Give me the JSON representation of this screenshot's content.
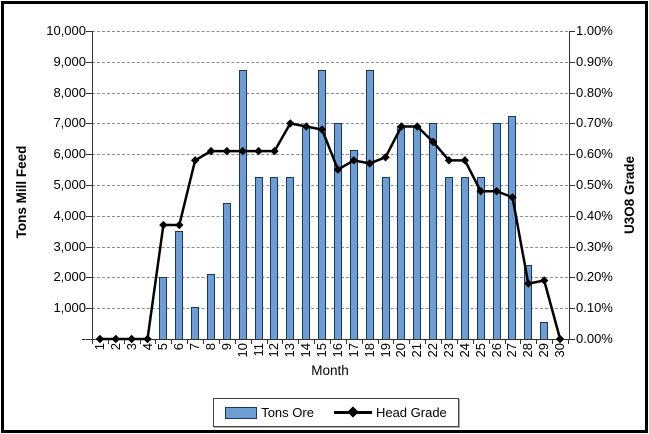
{
  "chart_data": {
    "type": "bar",
    "subtype": "combo-bar-line-dual-axis",
    "categories": [
      1,
      2,
      3,
      4,
      5,
      6,
      7,
      8,
      9,
      10,
      11,
      12,
      13,
      14,
      15,
      16,
      17,
      18,
      19,
      20,
      21,
      22,
      23,
      24,
      25,
      26,
      27,
      28,
      29,
      30
    ],
    "series": [
      {
        "name": "Tons Ore",
        "type": "bar",
        "axis": "left",
        "values": [
          0,
          0,
          0,
          0,
          2000,
          3500,
          1050,
          2100,
          4400,
          8750,
          5250,
          5250,
          5250,
          6900,
          8750,
          7000,
          6150,
          8750,
          5250,
          6900,
          6900,
          7000,
          5250,
          5250,
          5250,
          7000,
          7250,
          2400,
          550,
          0
        ]
      },
      {
        "name": "Head Grade",
        "type": "line",
        "axis": "right",
        "unit": "percent",
        "values": [
          0.0,
          0.0,
          0.0,
          0.0,
          0.37,
          0.37,
          0.58,
          0.61,
          0.61,
          0.61,
          0.61,
          0.61,
          0.7,
          0.69,
          0.68,
          0.55,
          0.58,
          0.57,
          0.59,
          0.69,
          0.69,
          0.64,
          0.58,
          0.58,
          0.48,
          0.48,
          0.46,
          0.18,
          0.19,
          0.0
        ]
      }
    ],
    "x_axis": {
      "title": "Month",
      "tick_labels": [
        "1",
        "2",
        "3",
        "4",
        "5",
        "6",
        "7",
        "8",
        "9",
        "10",
        "11",
        "12",
        "13",
        "14",
        "15",
        "16",
        "17",
        "18",
        "19",
        "20",
        "21",
        "22",
        "23",
        "24",
        "25",
        "26",
        "27",
        "28",
        "29",
        "30"
      ]
    },
    "left_axis": {
      "title": "Tons Mill Feed",
      "min": 0,
      "max": 10000,
      "step": 1000,
      "tick_labels": [
        "10,000",
        "9,000",
        "8,000",
        "7,000",
        "6,000",
        "5,000",
        "4,000",
        "3,000",
        "2,000",
        "1,000",
        "-"
      ]
    },
    "right_axis": {
      "title": "U3O8 Grade",
      "min": "0.00%",
      "max": "1.00%",
      "step": "0.10%",
      "tick_labels": [
        "1.00%",
        "0.90%",
        "0.80%",
        "0.70%",
        "0.60%",
        "0.50%",
        "0.40%",
        "0.30%",
        "0.20%",
        "0.10%",
        "0.00%"
      ]
    },
    "legend": {
      "position": "bottom-center",
      "items": [
        {
          "label": "Tons Ore",
          "marker": "bar-swatch"
        },
        {
          "label": "Head Grade",
          "marker": "line-with-diamond"
        }
      ]
    },
    "grid": "horizontal-dashed",
    "colors": {
      "bar_fill": "#6D9DD2",
      "bar_border": "#17375D",
      "line": "#000000",
      "marker": "#000000",
      "gridline": "#8C8C8C",
      "axis": "#333333",
      "frame": "#000000"
    }
  }
}
